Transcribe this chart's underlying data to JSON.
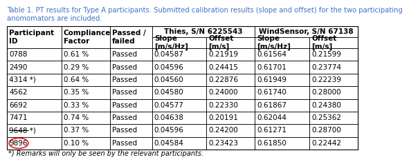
{
  "title_line1": "Table 1. PT results for Type A participants. Submitted calibration results (slope and offset) for the two participating",
  "title_line2": "anomomators are included.",
  "title_color": "#4472C4",
  "rows": [
    [
      "0788",
      "0.61 %",
      "Passed",
      "0.04587",
      "0.21919",
      "0.61564",
      "0.21599"
    ],
    [
      "2490",
      "0.29 %",
      "Passed",
      "0.04596",
      "0.24415",
      "0.61701",
      "0.23774"
    ],
    [
      "4314 *)",
      "0.64 %",
      "Passed",
      "0.04560",
      "0.22876",
      "0.61949",
      "0.22239"
    ],
    [
      "4562",
      "0.35 %",
      "Passed",
      "0.04580",
      "0.24000",
      "0.61740",
      "0.28000"
    ],
    [
      "6692",
      "0.33 %",
      "Passed",
      "0.04577",
      "0.22330",
      "0.61867",
      "0.24380"
    ],
    [
      "7471",
      "0.74 %",
      "Passed",
      "0.04638",
      "0.20191",
      "0.62044",
      "0.25362"
    ],
    [
      "9648 *)",
      "0.37 %",
      "Passed",
      "0.04596",
      "0.24200",
      "0.61271",
      "0.28700"
    ],
    [
      "9896",
      "0.10 %",
      "Passed",
      "0.04584",
      "0.23423",
      "0.61850",
      "0.22442"
    ]
  ],
  "footer": "*) Remarks will only be seen by the relevant participants.",
  "strikethrough_rows": [
    6
  ],
  "circle_rows": [
    7
  ],
  "bg_color": "#FFFFFF",
  "border_color": "#000000",
  "text_color": "#000000",
  "title_fontsize": 7.2,
  "header_fontsize": 7.5,
  "data_fontsize": 7.5,
  "col_weights": [
    0.118,
    0.105,
    0.092,
    0.118,
    0.105,
    0.118,
    0.105
  ],
  "thies_header": "Thies, S/N 6225543",
  "wind_header": "WindSensor, S/N 67138",
  "span_headers": [
    "Participant\nID",
    "Compliance\nFactor",
    "Passed /\nfailed"
  ],
  "sub_headers": [
    "Slope\n[m/s/Hz]",
    "Offset\n[m/s]",
    "Slope\n[m/s/Hz]",
    "Offset\n[m/s]"
  ]
}
